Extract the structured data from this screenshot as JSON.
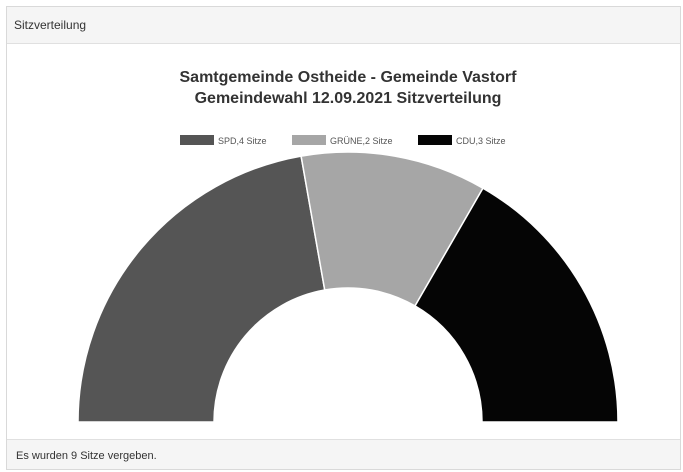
{
  "panel": {
    "header": "Sitzverteilung",
    "footer": "Es wurden 9 Sitze vergeben."
  },
  "chart_data": {
    "type": "pie",
    "subtype": "semicircle-donut",
    "title": "Samtgemeinde Ostheide - Gemeinde Vastorf",
    "subtitle": "Gemeindewahl 12.09.2021 Sitzverteilung",
    "legend_position": "top",
    "series": [
      {
        "name": "SPD,4 Sitze",
        "value": 4,
        "color": "#555555"
      },
      {
        "name": "GRÜNE,2 Sitze",
        "value": 2,
        "color": "#a6a6a6"
      },
      {
        "name": "CDU,3 Sitze",
        "value": 3,
        "color": "#050505"
      }
    ]
  }
}
